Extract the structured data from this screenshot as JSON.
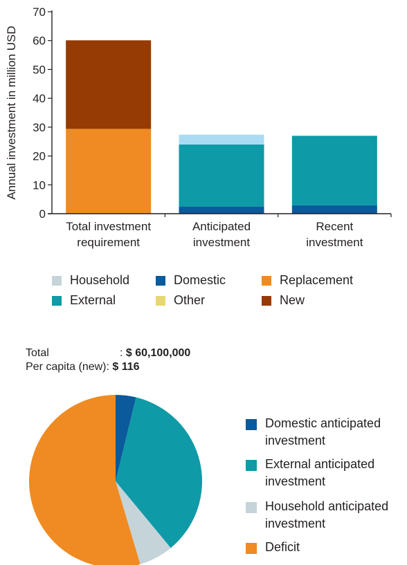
{
  "chart_data": [
    {
      "type": "bar",
      "stacked": true,
      "ylabel": "Annual investment in million USD",
      "ylim": [
        0,
        70
      ],
      "yticks": [
        0,
        10,
        20,
        30,
        40,
        50,
        60,
        70
      ],
      "categories": [
        [
          "Total investment",
          "requirement"
        ],
        [
          "Anticipated",
          "investment"
        ],
        [
          "Recent",
          "investment"
        ]
      ],
      "series": [
        {
          "name": "Household",
          "color": "#c5d4d9",
          "values": [
            0,
            0,
            0
          ]
        },
        {
          "name": "Domestic",
          "color": "#0a5a9c",
          "values": [
            0,
            2.4,
            2.9
          ]
        },
        {
          "name": "Replacement",
          "color": "#ef8b22",
          "values": [
            29.4,
            0,
            0
          ]
        },
        {
          "name": "External",
          "color": "#0e9aa6",
          "values": [
            0,
            21.6,
            24.1
          ]
        },
        {
          "name": "Other",
          "color": "#e6d770",
          "values": [
            0,
            0,
            0
          ]
        },
        {
          "name": "New",
          "color": "#953b03",
          "values": [
            30.7,
            0,
            0
          ]
        },
        {
          "name": "",
          "color": "#a9dcf3",
          "values": [
            0,
            3.4,
            0
          ]
        }
      ],
      "legend": [
        [
          "Household",
          "Domestic",
          "Replacement"
        ],
        [
          "External",
          "Other",
          "New"
        ]
      ]
    },
    {
      "type": "pie",
      "slices": [
        {
          "name": "Domestic anticipated investment",
          "color": "#0a5a9c",
          "value": 3.8
        },
        {
          "name": "External anticipated investment",
          "color": "#0e9aa6",
          "value": 35.2
        },
        {
          "name": "Household anticipated investment",
          "color": "#c5d4d9",
          "value": 6.4
        },
        {
          "name": "Deficit",
          "color": "#ef8b22",
          "value": 54.6
        }
      ],
      "legend": [
        [
          "Domestic anticipated",
          "investment"
        ],
        [
          "External anticipated",
          "investment"
        ],
        [
          "Household anticipated",
          "investment"
        ],
        [
          "Deficit"
        ]
      ]
    }
  ],
  "totals": {
    "total_label": "Total",
    "total_sep": ":",
    "total_value": "$ 60,100,000",
    "per_capita_label": "Per capita (new):",
    "per_capita_value": "$ 116"
  }
}
